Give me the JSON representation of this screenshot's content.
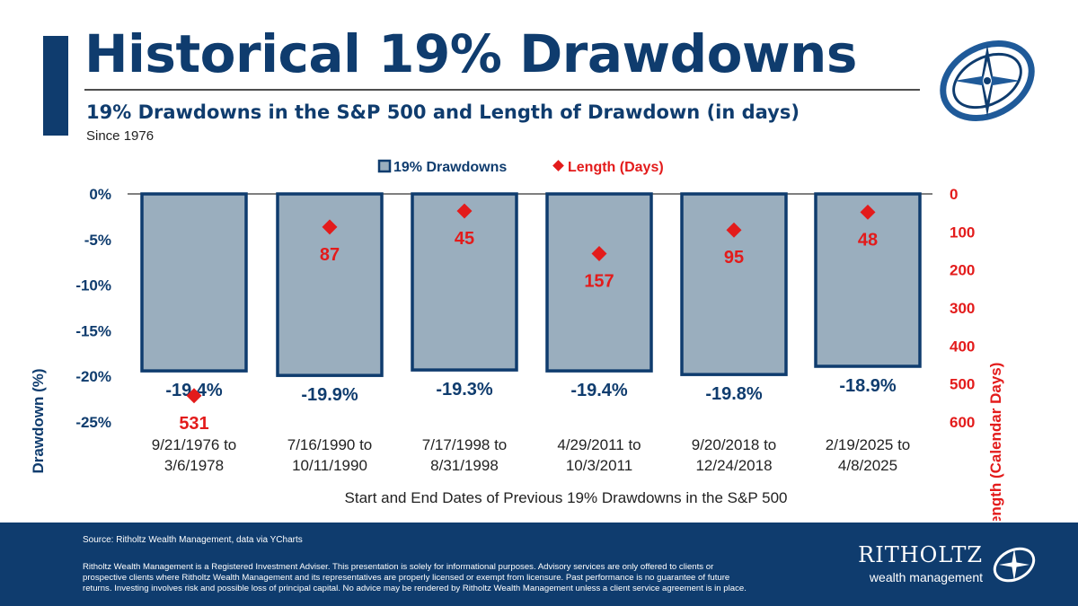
{
  "header": {
    "title": "Historical 19% Drawdowns",
    "subtitle": "19% Drawdowns in the S&P 500 and Length of Drawdown (in days)",
    "since": "Since 1976"
  },
  "colors": {
    "brand_navy": "#0f3c6e",
    "bar_fill": "#9aaebe",
    "marker_red": "#e31b1b"
  },
  "chart_data": {
    "type": "bar",
    "categories": [
      [
        "9/21/1976 to",
        "3/6/1978"
      ],
      [
        "7/16/1990 to",
        "10/11/1990"
      ],
      [
        "7/17/1998 to",
        "8/31/1998"
      ],
      [
        "4/29/2011 to",
        "10/3/2011"
      ],
      [
        "9/20/2018 to",
        "12/24/2018"
      ],
      [
        "2/19/2025 to",
        "4/8/2025"
      ]
    ],
    "series": [
      {
        "name": "19% Drawdowns",
        "axis": "left",
        "kind": "bar",
        "values": [
          -19.4,
          -19.9,
          -19.3,
          -19.4,
          -19.8,
          -18.9
        ],
        "labels": [
          "-19.4%",
          "-19.9%",
          "-19.3%",
          "-19.4%",
          "-19.8%",
          "-18.9%"
        ]
      },
      {
        "name": "Length (Days)",
        "axis": "right",
        "kind": "marker",
        "values": [
          531,
          87,
          45,
          157,
          95,
          48
        ],
        "labels": [
          "531",
          "87",
          "45",
          "157",
          "95",
          "48"
        ]
      }
    ],
    "y_left": {
      "label": "Drawdown (%)",
      "range": [
        -25,
        0
      ],
      "ticks": [
        0,
        -5,
        -10,
        -15,
        -20,
        -25
      ],
      "tick_labels": [
        "0%",
        "-5%",
        "-10%",
        "-15%",
        "-20%",
        "-25%"
      ]
    },
    "y_right": {
      "label": "Length (Calendar Days)",
      "range": [
        0,
        600
      ],
      "inverted": true,
      "ticks": [
        0,
        100,
        200,
        300,
        400,
        500,
        600
      ],
      "tick_labels": [
        "0",
        "100",
        "200",
        "300",
        "400",
        "500",
        "600"
      ]
    },
    "xlabel": "Start and End Dates of Previous 19% Drawdowns in the S&P 500",
    "legend": [
      "19% Drawdowns",
      "Length (Days)"
    ],
    "legend_position": "top-center",
    "grid": false
  },
  "footer": {
    "source": "Source: Ritholtz Wealth Management, data via YCharts",
    "disclaimer": "Ritholtz Wealth Management is a Registered Investment Adviser. This presentation is solely for informational purposes. Advisory services are only offered to clients or prospective clients where Ritholtz Wealth Management and its representatives are properly licensed or exempt from licensure. Past performance is no guarantee of future returns. Investing involves risk and possible loss of principal capital. No advice may be rendered by Ritholtz Wealth Management unless a client service agreement is in place.",
    "brand_name": "RITHOLTZ",
    "brand_tagline": "wealth management"
  }
}
